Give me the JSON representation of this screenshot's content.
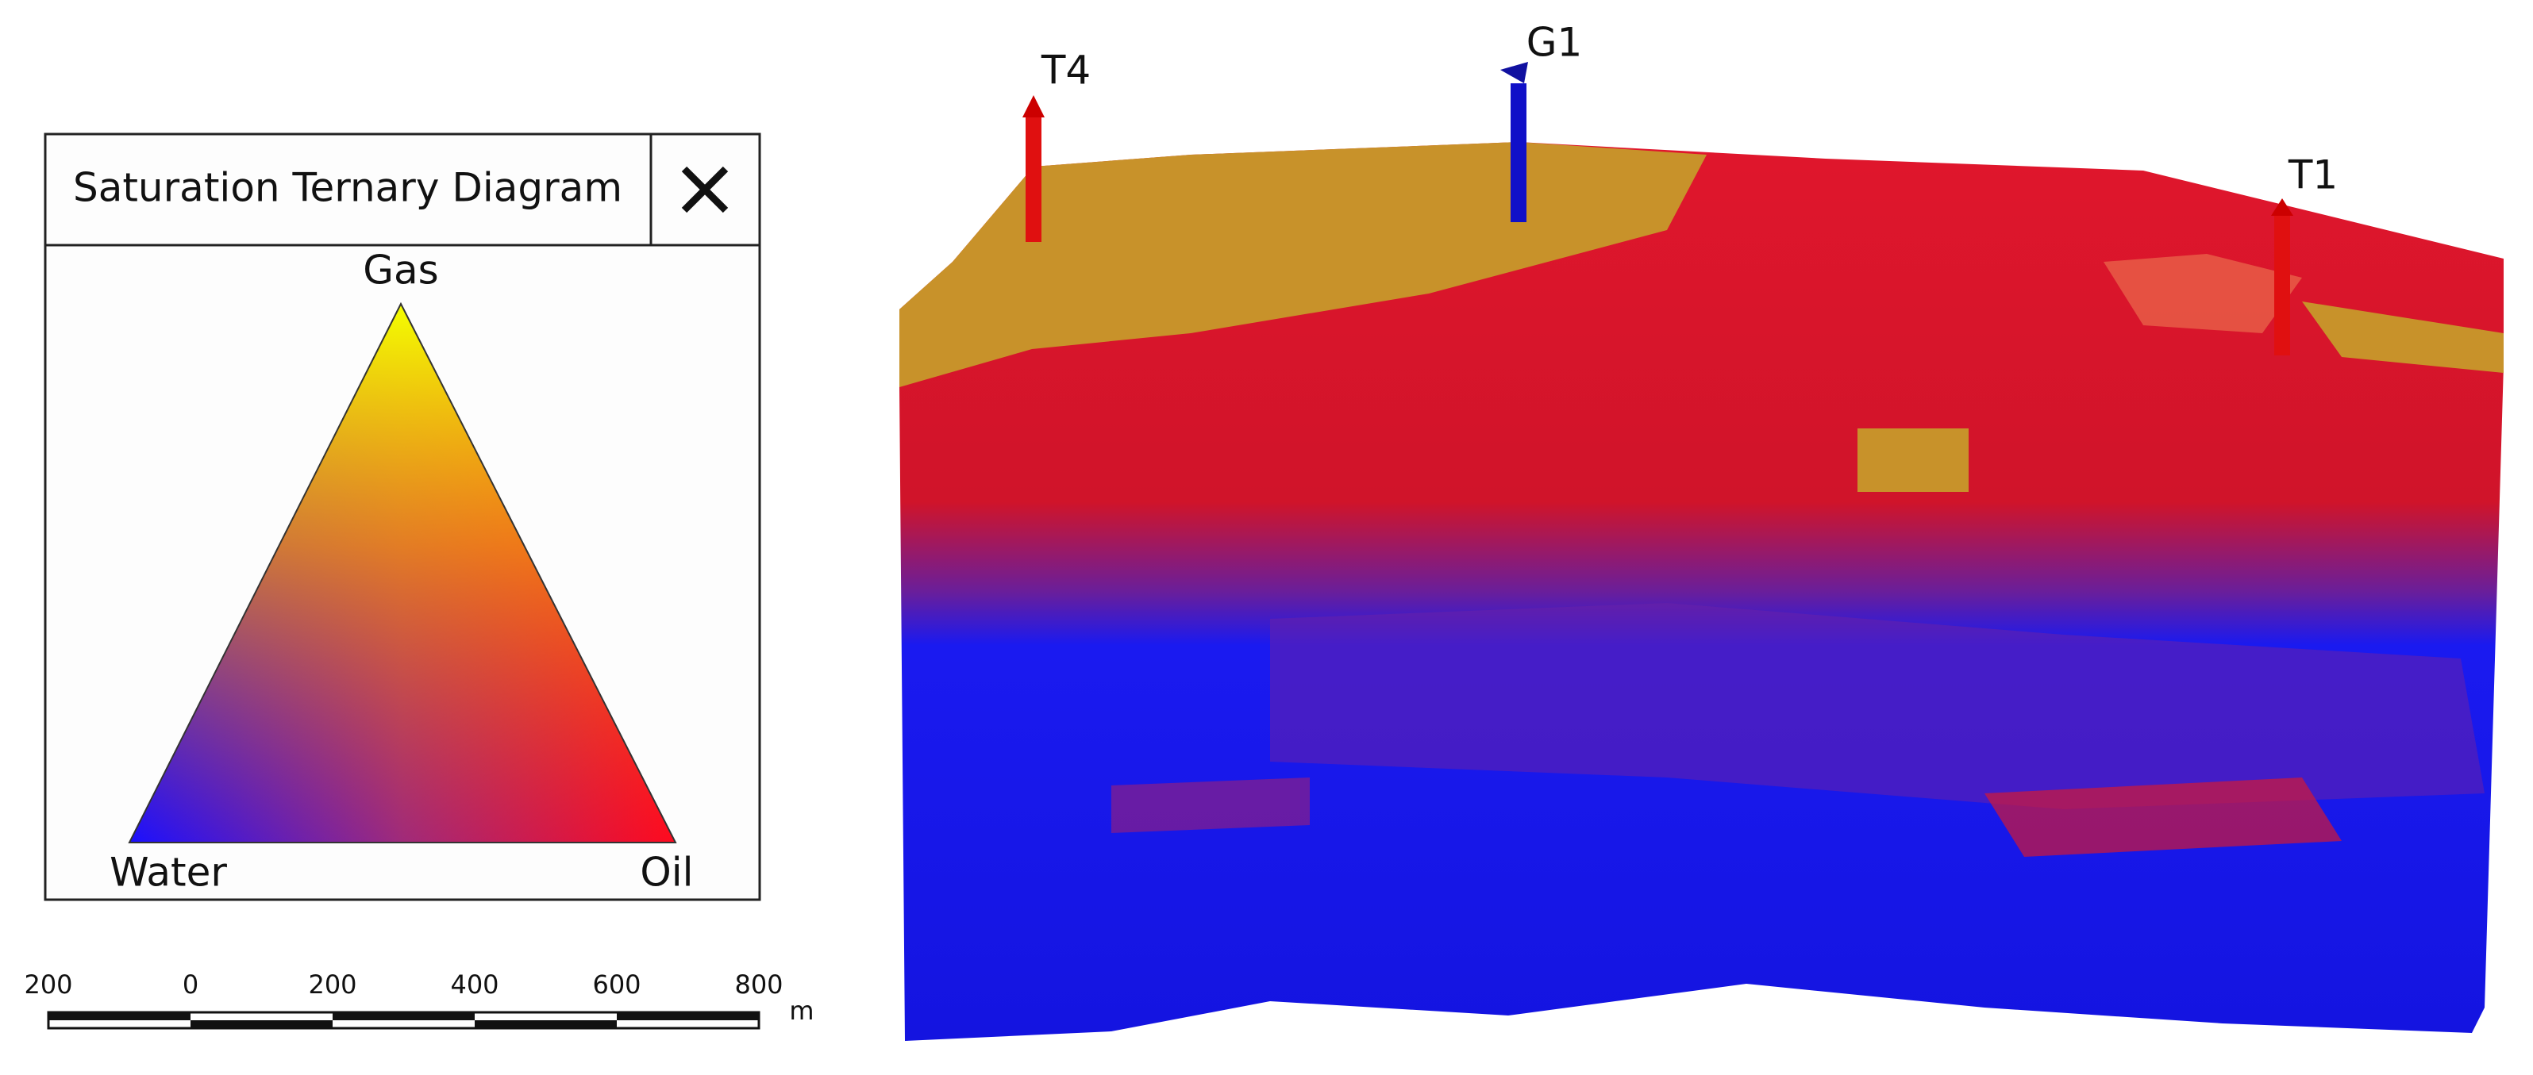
{
  "legend": {
    "title": "Saturation Ternary Diagram",
    "vertices": {
      "top": "Gas",
      "left": "Water",
      "right": "Oil"
    }
  },
  "scale_bar": {
    "labels": [
      "200",
      "0",
      "200",
      "400",
      "600",
      "800"
    ],
    "unit": "m"
  },
  "wells": [
    {
      "label": "T4"
    },
    {
      "label": "G1"
    },
    {
      "label": "T1"
    }
  ]
}
